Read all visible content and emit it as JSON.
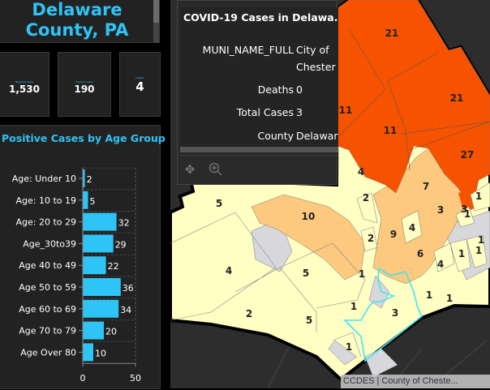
{
  "header": {
    "title_line1": "Delaware",
    "title_line2": "County, PA"
  },
  "stats": [
    {
      "label": "Negative Tests",
      "value": "1,530"
    },
    {
      "label": "Positive Cases",
      "value": "190"
    },
    {
      "label": "Deaths",
      "value": "4"
    }
  ],
  "chart_data": {
    "type": "bar",
    "orientation": "horizontal",
    "title": "Positive Cases by Age Group",
    "categories": [
      "Age: Under 10",
      "Age: 10 to 19",
      "Age: 20 to 29",
      "Age_30to39",
      "Age 40 to 49",
      "Age 50 to 59",
      "Age 60 to 69",
      "Age 70 to 79",
      "Age Over 80"
    ],
    "values": [
      2,
      5,
      32,
      29,
      22,
      36,
      34,
      20,
      10
    ],
    "xlim": [
      0,
      50
    ],
    "xticks": [
      "0",
      "50"
    ],
    "grid": true,
    "color": "#2ec4f5"
  },
  "popup": {
    "title": "COVID-19 Cases in Delawa...",
    "fields": [
      {
        "key": "MUNI_NAME_FULL",
        "value_line1": "City of",
        "value_line2": "Chester"
      },
      {
        "key": "Deaths",
        "value_line1": "0"
      },
      {
        "key": "Total Cases",
        "value_line1": "3"
      },
      {
        "key": "County",
        "value_line1": "Delaware"
      }
    ],
    "tools": [
      {
        "name": "move-icon"
      },
      {
        "name": "zoom-to-icon"
      }
    ]
  },
  "map": {
    "labels": [
      "21",
      "11",
      "21",
      "11",
      "27",
      "4",
      "2",
      "7",
      "3",
      "1",
      "1",
      "5",
      "10",
      "2",
      "9",
      "4",
      "3",
      "1",
      "4",
      "6",
      "1",
      "1",
      "2",
      "5",
      "1",
      "4",
      "1",
      "1",
      "3",
      "5",
      "1",
      "1"
    ],
    "colors": {
      "high": "#f65200",
      "mid": "#fcc97e",
      "low": "#ffffc4",
      "none": "#d8d8dc",
      "selected": "#3ee6f5"
    },
    "attribution": "CCDES | County of Cheste..."
  }
}
